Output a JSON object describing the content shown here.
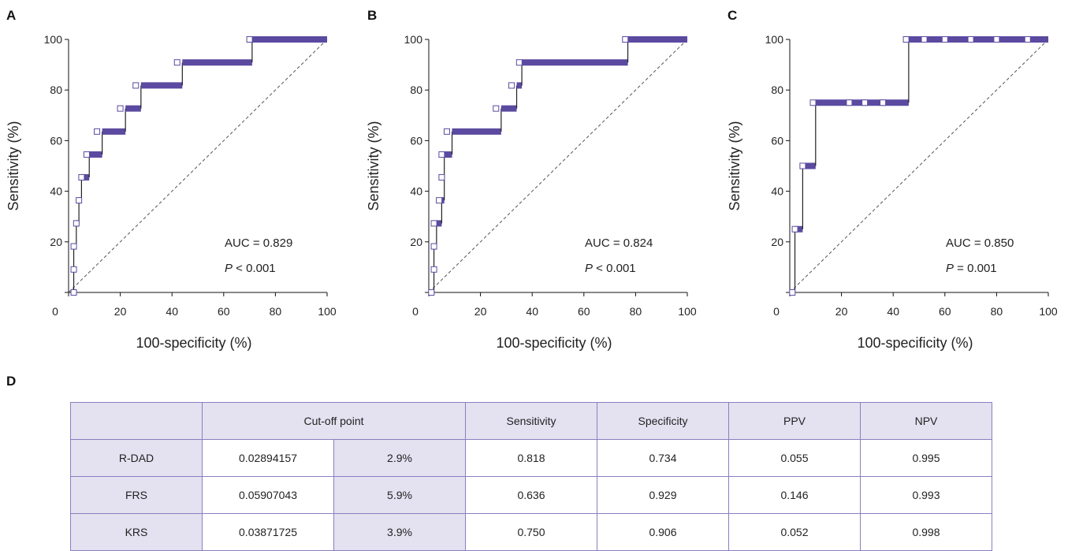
{
  "panels": [
    {
      "letter": "A",
      "auc_text": "AUC = 0.829",
      "p_label": "P",
      "p_rest": " < 0.001"
    },
    {
      "letter": "B",
      "auc_text": "AUC = 0.824",
      "p_label": "P",
      "p_rest": " < 0.001"
    },
    {
      "letter": "C",
      "auc_text": "AUC = 0.850",
      "p_label": "P",
      "p_rest": " = 0.001"
    }
  ],
  "table_label": "D",
  "chart_data": [
    {
      "type": "line",
      "title": "",
      "xlabel": "100-specificity (%)",
      "ylabel": "Sensitivity (%)",
      "xlim": [
        0,
        100
      ],
      "ylim": [
        0,
        100
      ],
      "x_ticks": [
        "0",
        "20",
        "40",
        "60",
        "80",
        "100"
      ],
      "y_ticks": [
        "20",
        "40",
        "60",
        "80",
        "100"
      ],
      "grid": false,
      "roc": [
        [
          1,
          0
        ],
        [
          2,
          0
        ],
        [
          2,
          9.1
        ],
        [
          2,
          18.2
        ],
        [
          3,
          18.2
        ],
        [
          3,
          27.3
        ],
        [
          4,
          27.3
        ],
        [
          4,
          36.4
        ],
        [
          5,
          36.4
        ],
        [
          5,
          45.5
        ],
        [
          8,
          45.5
        ],
        [
          8,
          54.5
        ],
        [
          13,
          54.5
        ],
        [
          13,
          63.6
        ],
        [
          22,
          63.6
        ],
        [
          22,
          72.7
        ],
        [
          28,
          72.7
        ],
        [
          28,
          81.8
        ],
        [
          44,
          81.8
        ],
        [
          44,
          90.9
        ],
        [
          71,
          90.9
        ],
        [
          71,
          100
        ],
        [
          100,
          100
        ]
      ],
      "cutoff_markers": [
        [
          2,
          0
        ],
        [
          2,
          9.1
        ],
        [
          2,
          18.2
        ],
        [
          3,
          27.3
        ],
        [
          4,
          36.4
        ],
        [
          5,
          45.5
        ],
        [
          7,
          54.5
        ],
        [
          11,
          63.6
        ],
        [
          20,
          72.7
        ],
        [
          26,
          81.8
        ],
        [
          42,
          90.9
        ],
        [
          70,
          100
        ]
      ],
      "reference_line": [
        [
          0,
          0
        ],
        [
          100,
          100
        ]
      ]
    },
    {
      "type": "line",
      "title": "",
      "xlabel": "100-specificity (%)",
      "ylabel": "Sensitivity (%)",
      "xlim": [
        0,
        100
      ],
      "ylim": [
        0,
        100
      ],
      "x_ticks": [
        "0",
        "20",
        "40",
        "60",
        "80",
        "100"
      ],
      "y_ticks": [
        "20",
        "40",
        "60",
        "80",
        "100"
      ],
      "grid": false,
      "roc": [
        [
          1,
          0
        ],
        [
          2,
          0
        ],
        [
          2,
          9.1
        ],
        [
          2,
          18.2
        ],
        [
          3,
          18.2
        ],
        [
          3,
          27.3
        ],
        [
          5,
          27.3
        ],
        [
          5,
          36.4
        ],
        [
          6,
          36.4
        ],
        [
          6,
          45.5
        ],
        [
          6,
          54.5
        ],
        [
          9,
          54.5
        ],
        [
          9,
          63.6
        ],
        [
          28,
          63.6
        ],
        [
          28,
          72.7
        ],
        [
          34,
          72.7
        ],
        [
          34,
          81.8
        ],
        [
          36,
          81.8
        ],
        [
          36,
          90.9
        ],
        [
          77,
          90.9
        ],
        [
          77,
          100
        ],
        [
          100,
          100
        ]
      ],
      "cutoff_markers": [
        [
          1,
          0
        ],
        [
          2,
          9.1
        ],
        [
          2,
          18.2
        ],
        [
          2,
          27.3
        ],
        [
          4,
          36.4
        ],
        [
          5,
          45.5
        ],
        [
          5,
          54.5
        ],
        [
          7,
          63.6
        ],
        [
          26,
          72.7
        ],
        [
          32,
          81.8
        ],
        [
          35,
          90.9
        ],
        [
          76,
          100
        ]
      ],
      "reference_line": [
        [
          0,
          0
        ],
        [
          100,
          100
        ]
      ]
    },
    {
      "type": "line",
      "title": "",
      "xlabel": "100-specificity (%)",
      "ylabel": "Sensitivity (%)",
      "xlim": [
        0,
        100
      ],
      "ylim": [
        0,
        100
      ],
      "x_ticks": [
        "0",
        "20",
        "40",
        "60",
        "80",
        "100"
      ],
      "y_ticks": [
        "20",
        "40",
        "60",
        "80",
        "100"
      ],
      "grid": false,
      "roc": [
        [
          1,
          0
        ],
        [
          2,
          0
        ],
        [
          2,
          25
        ],
        [
          5,
          25
        ],
        [
          5,
          50
        ],
        [
          10,
          50
        ],
        [
          10,
          75
        ],
        [
          46,
          75
        ],
        [
          46,
          100
        ],
        [
          100,
          100
        ]
      ],
      "cutoff_markers": [
        [
          1,
          0
        ],
        [
          2,
          25
        ],
        [
          5,
          50
        ],
        [
          9,
          75
        ],
        [
          23,
          75
        ],
        [
          29,
          75
        ],
        [
          36,
          75
        ],
        [
          45,
          100
        ],
        [
          52,
          100
        ],
        [
          60,
          100
        ],
        [
          70,
          100
        ],
        [
          80,
          100
        ],
        [
          92,
          100
        ]
      ],
      "reference_line": [
        [
          0,
          0
        ],
        [
          100,
          100
        ]
      ]
    }
  ],
  "table": {
    "headers": [
      "",
      "Cut-off point",
      "Sensitivity",
      "Specificity",
      "PPV",
      "NPV"
    ],
    "rows": [
      {
        "name": "R-DAD",
        "cutoff_value": "0.02894157",
        "cutoff_pct": "2.9%",
        "sensitivity": "0.818",
        "specificity": "0.734",
        "ppv": "0.055",
        "npv": "0.995"
      },
      {
        "name": "FRS",
        "cutoff_value": "0.05907043",
        "cutoff_pct": "5.9%",
        "sensitivity": "0.636",
        "specificity": "0.929",
        "ppv": "0.146",
        "npv": "0.993"
      },
      {
        "name": "KRS",
        "cutoff_value": "0.03871725",
        "cutoff_pct": "3.9%",
        "sensitivity": "0.750",
        "specificity": "0.906",
        "ppv": "0.052",
        "npv": "0.998"
      }
    ]
  },
  "colors": {
    "roc_line": "#5b4aa0",
    "marker_fill": "#ffffff",
    "reference": "#555555",
    "table_border": "#8a7fc0",
    "table_shade": "#e4e1f0"
  }
}
